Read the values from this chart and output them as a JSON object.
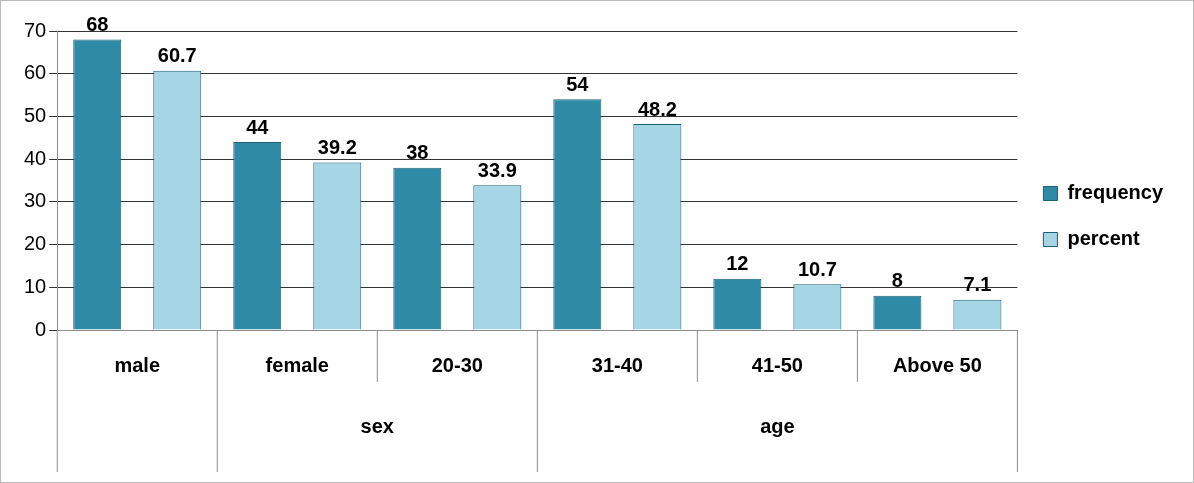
{
  "chart_data": {
    "type": "bar",
    "categories": [
      "male",
      "female",
      "20-30",
      "31-40",
      "41-50",
      "Above 50"
    ],
    "series": [
      {
        "name": "frequency",
        "color": "#2f8aa6",
        "values": [
          68,
          44,
          38,
          54,
          12,
          8
        ]
      },
      {
        "name": "percent",
        "color": "#a6d6e6",
        "values": [
          60.7,
          39.2,
          33.9,
          48.2,
          10.7,
          7.1
        ]
      }
    ],
    "ylim": [
      0,
      70
    ],
    "yticks": [
      0,
      10,
      20,
      30,
      40,
      50,
      60,
      70
    ],
    "grid": "y",
    "legend": "right",
    "data_labels": true,
    "annotations": [
      "sex",
      "age"
    ]
  }
}
